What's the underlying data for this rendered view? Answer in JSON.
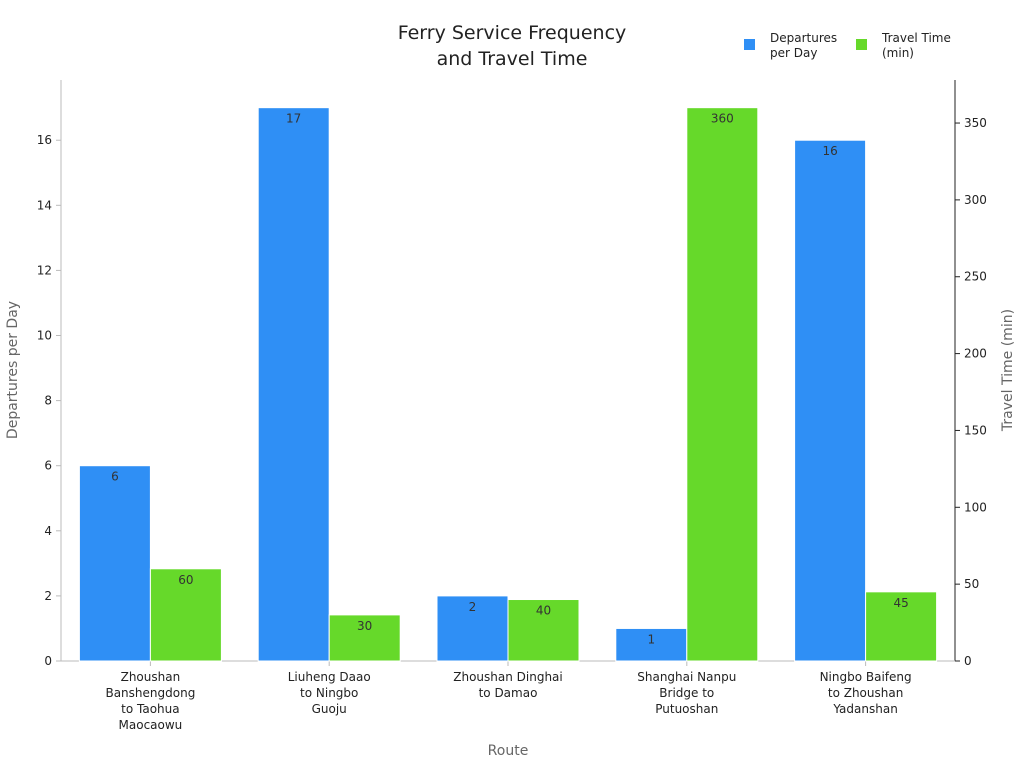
{
  "chart_data": {
    "type": "bar",
    "title": "Ferry Service Frequency\nand Travel Time",
    "xlabel": "Route",
    "ylabel": "Departures per Day",
    "y2label": "Travel Time (min)",
    "categories": [
      "Zhoushan\nBanshengdong\nto Taohua\nMaocaowu",
      "Liuheng Daao\nto Ningbo\nGuoju",
      "Zhoushan Dinghai\nto Damao",
      "Shanghai Nanpu\nBridge to\nPutuoshan",
      "Ningbo Baifeng\nto Zhoushan\nYadanshan"
    ],
    "series": [
      {
        "name": "Departures\nper Day",
        "color": "#2f8ff5",
        "values": [
          6,
          17,
          2,
          1,
          16
        ]
      },
      {
        "name": "Travel Time\n(min)",
        "color": "#66d92a",
        "axis": "y2",
        "values": [
          60,
          30,
          40,
          360,
          45
        ]
      }
    ],
    "ylim": [
      0,
      17.85
    ],
    "yticks": [
      0,
      2,
      4,
      6,
      8,
      10,
      12,
      14,
      16
    ],
    "y2lim": [
      0,
      378
    ],
    "y2ticks": [
      0,
      50,
      100,
      150,
      200,
      250,
      300,
      350
    ],
    "legend": "upper right"
  }
}
